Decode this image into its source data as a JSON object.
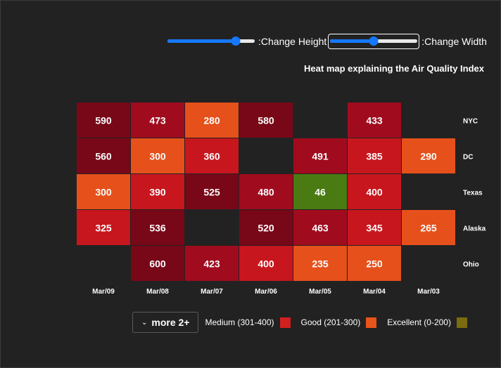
{
  "controls": {
    "height_slider": {
      "label": ":Change Height",
      "value": 0.78
    },
    "width_slider": {
      "label": ":Change Width",
      "value": 0.5
    }
  },
  "chart_data": {
    "type": "heatmap",
    "title": "Heat map explaining the Air Quality Index",
    "x_categories": [
      "Mar/09",
      "Mar/08",
      "Mar/07",
      "Mar/06",
      "Mar/05",
      "Mar/04",
      "Mar/03"
    ],
    "y_categories": [
      "NYC",
      "DC",
      "Texas",
      "Alaska",
      "Ohio"
    ],
    "values": [
      [
        590,
        473,
        280,
        580,
        null,
        433,
        null
      ],
      [
        560,
        300,
        360,
        null,
        491,
        385,
        290
      ],
      [
        300,
        390,
        525,
        480,
        46,
        400,
        null
      ],
      [
        325,
        536,
        null,
        520,
        463,
        345,
        265
      ],
      [
        null,
        600,
        423,
        400,
        235,
        250,
        null
      ]
    ],
    "legend": {
      "more_label": "more 2+",
      "items": [
        {
          "label": "Medium (301-400)",
          "color": "#d22020"
        },
        {
          "label": "Good (201-300)",
          "color": "#e8541a"
        },
        {
          "label": "Excellent (0-200)",
          "color": "#7a6a10"
        }
      ]
    },
    "colors": {
      "excellent": "#4a7a12",
      "good": "#e6501a",
      "medium": "#c8161f",
      "poor": "#a00c1e",
      "very_poor": "#780818"
    }
  }
}
